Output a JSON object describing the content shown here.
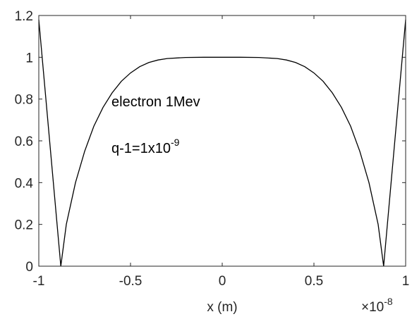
{
  "chart_data": {
    "type": "line",
    "title": "",
    "xlabel": "x (m)",
    "ylabel": "",
    "x_exponent_label": {
      "base": "×10",
      "exponent": "-8"
    },
    "xlim": [
      -1,
      1
    ],
    "ylim": [
      0,
      1.2
    ],
    "x_ticks": [
      -1,
      -0.5,
      0,
      0.5,
      1
    ],
    "x_tick_labels": [
      "-1",
      "-0.5",
      "0",
      "0.5",
      "1"
    ],
    "y_ticks": [
      0,
      0.2,
      0.4,
      0.6,
      0.8,
      1.0,
      1.2
    ],
    "y_tick_labels": [
      "0",
      "0.2",
      "0.4",
      "0.6",
      "0.8",
      "1",
      "1.2"
    ],
    "grid": false,
    "annotations": [
      {
        "text": "electron 1Mev"
      },
      {
        "text": "q-1=1x10",
        "superscript": "-9"
      }
    ],
    "series": [
      {
        "color": "#000000",
        "x": [
          -1,
          -0.88,
          -0.85,
          -0.8,
          -0.75,
          -0.7,
          -0.65,
          -0.6,
          -0.55,
          -0.5,
          -0.45,
          -0.4,
          -0.35,
          -0.3,
          -0.2,
          -0.1,
          0,
          0.1,
          0.2,
          0.3,
          0.35,
          0.4,
          0.45,
          0.5,
          0.55,
          0.6,
          0.65,
          0.7,
          0.75,
          0.8,
          0.85,
          0.88,
          1
        ],
        "y": [
          1.18,
          0,
          0.2,
          0.4,
          0.55,
          0.67,
          0.76,
          0.83,
          0.885,
          0.925,
          0.955,
          0.975,
          0.987,
          0.994,
          0.999,
          1.0,
          1.0,
          1.0,
          0.999,
          0.994,
          0.987,
          0.975,
          0.955,
          0.925,
          0.885,
          0.83,
          0.76,
          0.67,
          0.55,
          0.4,
          0.2,
          0,
          1.18
        ]
      }
    ]
  }
}
